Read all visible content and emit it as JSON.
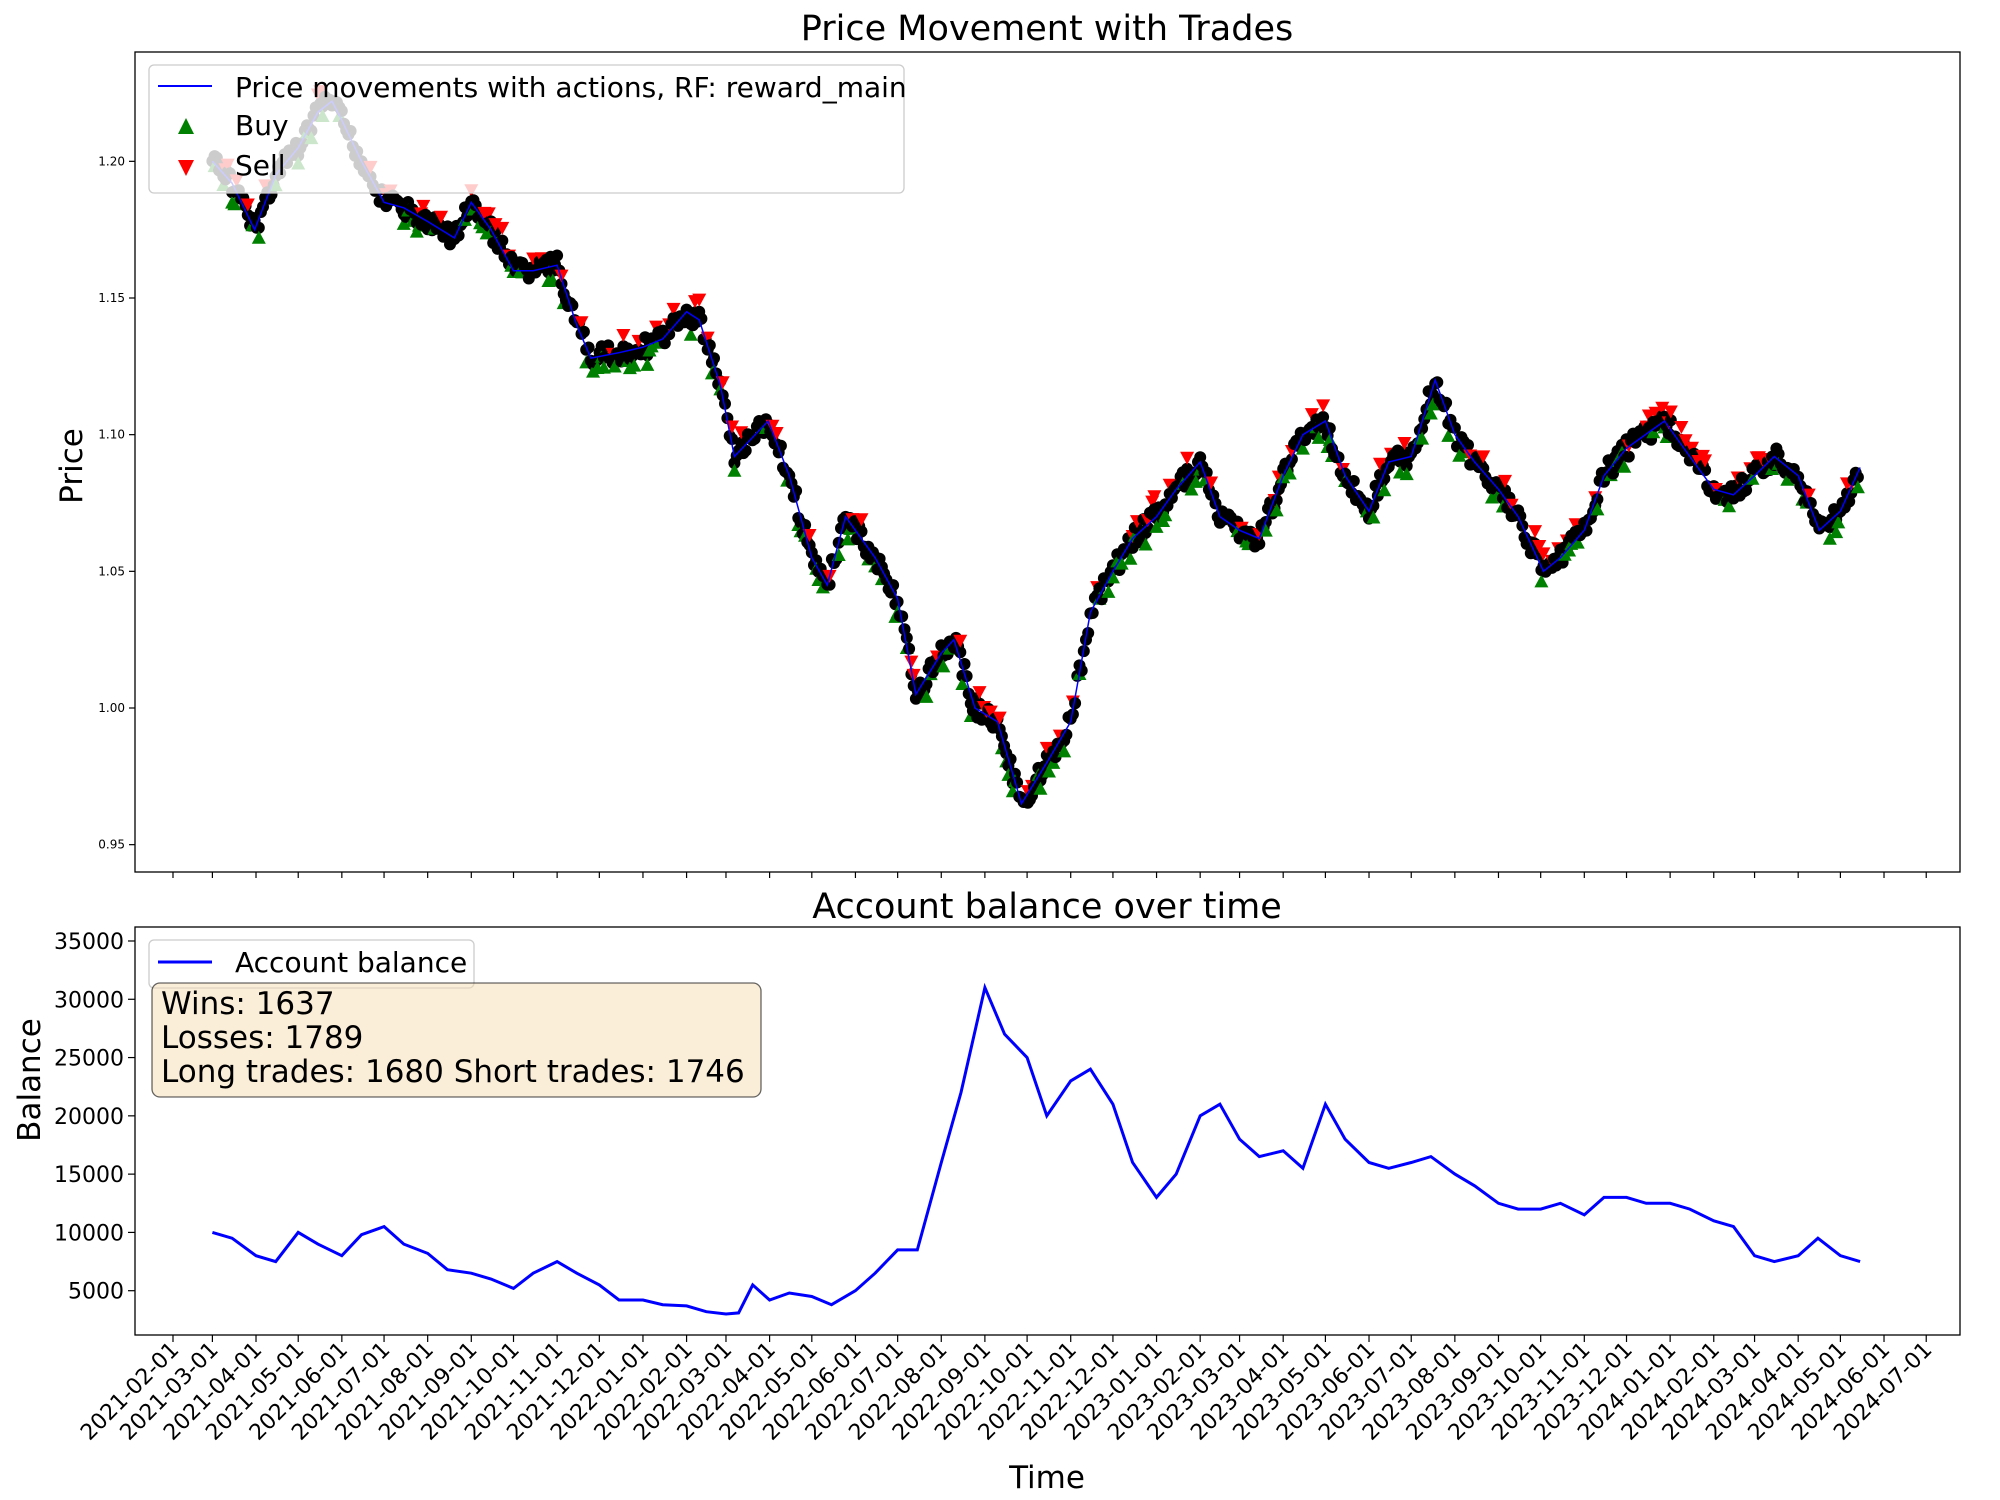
{
  "chart_data": [
    {
      "type": "line",
      "title": "Price Movement with Trades",
      "xlabel": "",
      "ylabel": "Price",
      "ylim": [
        0.94,
        1.24
      ],
      "xlim": [
        "2021-01-05",
        "2024-07-25"
      ],
      "yticks": [
        "0.95",
        "1.00",
        "1.05",
        "1.10",
        "1.15",
        "1.20"
      ],
      "grid": false,
      "legend_position": "top-left",
      "legend": [
        {
          "label": "Price movements with actions, RF: reward_main",
          "kind": "line",
          "color": "#0000ff"
        },
        {
          "label": "Buy",
          "kind": "marker",
          "marker": "triangle-up",
          "color": "#008000"
        },
        {
          "label": "Sell",
          "kind": "marker",
          "marker": "triangle-down",
          "color": "#ff0000"
        }
      ],
      "series": [
        {
          "name": "Price movements with actions, RF: reward_main",
          "color": "#0000ff",
          "x": [
            "2021-03-01",
            "2021-03-15",
            "2021-03-31",
            "2021-04-15",
            "2021-05-01",
            "2021-05-15",
            "2021-05-25",
            "2021-06-01",
            "2021-06-15",
            "2021-07-01",
            "2021-07-15",
            "2021-08-01",
            "2021-08-20",
            "2021-09-01",
            "2021-09-15",
            "2021-10-01",
            "2021-10-15",
            "2021-11-01",
            "2021-11-15",
            "2021-11-25",
            "2021-12-15",
            "2022-01-01",
            "2022-01-15",
            "2022-02-01",
            "2022-02-10",
            "2022-02-25",
            "2022-03-07",
            "2022-03-31",
            "2022-04-15",
            "2022-05-01",
            "2022-05-12",
            "2022-05-25",
            "2022-06-15",
            "2022-07-01",
            "2022-07-14",
            "2022-08-01",
            "2022-08-10",
            "2022-08-25",
            "2022-09-10",
            "2022-09-27",
            "2022-10-15",
            "2022-11-01",
            "2022-11-15",
            "2022-12-01",
            "2022-12-15",
            "2023-01-01",
            "2023-01-15",
            "2023-02-01",
            "2023-02-15",
            "2023-03-01",
            "2023-03-15",
            "2023-04-01",
            "2023-04-15",
            "2023-05-01",
            "2023-05-15",
            "2023-06-01",
            "2023-06-15",
            "2023-07-01",
            "2023-07-18",
            "2023-08-01",
            "2023-08-15",
            "2023-09-01",
            "2023-09-15",
            "2023-10-03",
            "2023-10-15",
            "2023-11-01",
            "2023-11-15",
            "2023-12-01",
            "2023-12-28",
            "2024-01-15",
            "2024-02-01",
            "2024-02-15",
            "2024-03-01",
            "2024-03-15",
            "2024-04-01",
            "2024-04-16",
            "2024-05-01",
            "2024-05-15"
          ],
          "values": [
            1.2,
            1.192,
            1.175,
            1.195,
            1.205,
            1.218,
            1.222,
            1.215,
            1.2,
            1.185,
            1.183,
            1.178,
            1.172,
            1.185,
            1.175,
            1.16,
            1.16,
            1.162,
            1.14,
            1.128,
            1.13,
            1.132,
            1.135,
            1.145,
            1.142,
            1.118,
            1.092,
            1.105,
            1.085,
            1.055,
            1.045,
            1.07,
            1.055,
            1.04,
            1.005,
            1.02,
            1.025,
            1.0,
            0.995,
            0.965,
            0.98,
            0.995,
            1.035,
            1.05,
            1.062,
            1.07,
            1.08,
            1.09,
            1.07,
            1.065,
            1.062,
            1.085,
            1.1,
            1.105,
            1.085,
            1.072,
            1.09,
            1.092,
            1.12,
            1.1,
            1.09,
            1.08,
            1.07,
            1.05,
            1.055,
            1.065,
            1.085,
            1.095,
            1.105,
            1.092,
            1.08,
            1.078,
            1.085,
            1.092,
            1.085,
            1.065,
            1.072,
            1.088
          ]
        }
      ]
    },
    {
      "type": "line",
      "title": "Account balance over time",
      "xlabel": "Time",
      "ylabel": "Balance",
      "ylim": [
        1200,
        36200
      ],
      "xlim": [
        "2021-01-05",
        "2024-07-25"
      ],
      "yticks": [
        "5000",
        "10000",
        "15000",
        "20000",
        "25000",
        "30000",
        "35000"
      ],
      "xticks": [
        "2021-02-01",
        "2021-03-01",
        "2021-04-01",
        "2021-05-01",
        "2021-06-01",
        "2021-07-01",
        "2021-08-01",
        "2021-09-01",
        "2021-10-01",
        "2021-11-01",
        "2021-12-01",
        "2022-01-01",
        "2022-02-01",
        "2022-03-01",
        "2022-04-01",
        "2022-05-01",
        "2022-06-01",
        "2022-07-01",
        "2022-08-01",
        "2022-09-01",
        "2022-10-01",
        "2022-11-01",
        "2022-12-01",
        "2023-01-01",
        "2023-02-01",
        "2023-03-01",
        "2023-04-01",
        "2023-05-01",
        "2023-06-01",
        "2023-07-01",
        "2023-08-01",
        "2023-09-01",
        "2023-10-01",
        "2023-11-01",
        "2023-12-01",
        "2024-01-01",
        "2024-02-01",
        "2024-03-01",
        "2024-04-01",
        "2024-05-01",
        "2024-06-01",
        "2024-07-01"
      ],
      "grid": false,
      "legend_position": "top-left",
      "legend": [
        {
          "label": "Account balance",
          "kind": "line",
          "color": "#0000ff"
        }
      ],
      "annotation": [
        "Wins: 1637",
        "Losses: 1789",
        "Long trades: 1680 Short trades: 1746"
      ],
      "series": [
        {
          "name": "Account balance",
          "color": "#0000ff",
          "x": [
            "2021-03-01",
            "2021-03-15",
            "2021-04-01",
            "2021-04-15",
            "2021-05-01",
            "2021-05-15",
            "2021-06-01",
            "2021-06-15",
            "2021-07-01",
            "2021-07-15",
            "2021-08-01",
            "2021-08-15",
            "2021-09-01",
            "2021-09-15",
            "2021-10-01",
            "2021-10-15",
            "2021-11-01",
            "2021-11-15",
            "2021-12-01",
            "2021-12-15",
            "2022-01-01",
            "2022-01-15",
            "2022-02-01",
            "2022-02-15",
            "2022-03-01",
            "2022-03-10",
            "2022-03-20",
            "2022-04-01",
            "2022-04-15",
            "2022-05-01",
            "2022-05-15",
            "2022-06-01",
            "2022-06-15",
            "2022-07-01",
            "2022-07-15",
            "2022-08-01",
            "2022-08-15",
            "2022-09-01",
            "2022-09-15",
            "2022-10-01",
            "2022-10-15",
            "2022-11-01",
            "2022-11-15",
            "2022-12-01",
            "2022-12-15",
            "2023-01-01",
            "2023-01-15",
            "2023-02-01",
            "2023-02-15",
            "2023-03-01",
            "2023-03-15",
            "2023-04-01",
            "2023-04-15",
            "2023-05-01",
            "2023-05-15",
            "2023-06-01",
            "2023-06-15",
            "2023-07-01",
            "2023-07-15",
            "2023-08-01",
            "2023-08-15",
            "2023-09-01",
            "2023-09-15",
            "2023-10-01",
            "2023-10-15",
            "2023-11-01",
            "2023-11-15",
            "2023-12-01",
            "2023-12-15",
            "2024-01-01",
            "2024-01-15",
            "2024-02-01",
            "2024-02-15",
            "2024-03-01",
            "2024-03-15",
            "2024-04-01",
            "2024-04-15",
            "2024-05-01",
            "2024-05-15"
          ],
          "values": [
            10000,
            9500,
            8000,
            7500,
            10000,
            9000,
            8000,
            9800,
            10500,
            9000,
            8200,
            6800,
            6500,
            6000,
            5200,
            6500,
            7500,
            6500,
            5500,
            4200,
            4200,
            3800,
            3700,
            3200,
            3000,
            3100,
            5500,
            4200,
            4800,
            4500,
            3800,
            5000,
            6500,
            8500,
            8500,
            16000,
            22000,
            31000,
            27000,
            25000,
            20000,
            23000,
            24000,
            21000,
            16000,
            13000,
            15000,
            20000,
            21000,
            18000,
            16500,
            17000,
            15500,
            21000,
            18000,
            16000,
            15500,
            16000,
            16500,
            15000,
            14000,
            12500,
            12000,
            12000,
            12500,
            11500,
            13000,
            13000,
            12500,
            12500,
            12000,
            11000,
            10500,
            8000,
            7500,
            8000,
            9500,
            8000,
            7500
          ]
        }
      ]
    }
  ]
}
